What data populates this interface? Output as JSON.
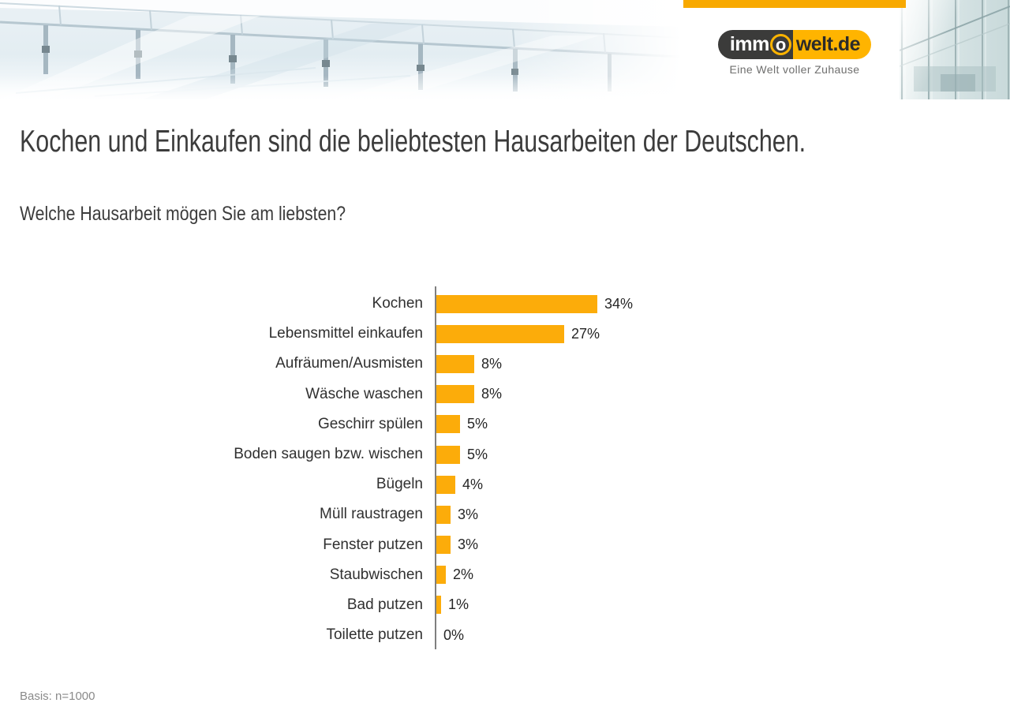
{
  "header": {
    "brand": {
      "logo_part_dark": "imm",
      "logo_part_ring": "o",
      "logo_part_yellow": "welt.de",
      "tagline": "Eine Welt voller Zuhause"
    },
    "accent_bar_color": "#F8A900",
    "logo_yellow": "#FFB400",
    "logo_dark": "#3B3B3A"
  },
  "slide": {
    "title": "Kochen und Einkaufen sind die beliebtesten Hausarbeiten der Deutschen.",
    "question": "Welche Hausarbeit mögen Sie am liebsten?"
  },
  "chart_data": {
    "type": "bar",
    "orientation": "horizontal",
    "title": "Welche Hausarbeit mögen Sie am liebsten?",
    "categories": [
      "Kochen",
      "Lebensmittel einkaufen",
      "Aufräumen/Ausmisten",
      "Wäsche waschen",
      "Geschirr spülen",
      "Boden saugen bzw. wischen",
      "Bügeln",
      "Müll raustragen",
      "Fenster putzen",
      "Staubwischen",
      "Bad putzen",
      "Toilette putzen"
    ],
    "values": [
      34,
      27,
      8,
      8,
      5,
      5,
      4,
      3,
      3,
      2,
      1,
      0
    ],
    "value_labels": [
      "34%",
      "27%",
      "8%",
      "8%",
      "5%",
      "5%",
      "4%",
      "3%",
      "3%",
      "2%",
      "1%",
      "0%"
    ],
    "unit": "%",
    "xlim": [
      0,
      38
    ],
    "grid": false,
    "legend": false,
    "bar_color": "#FCAC0A",
    "axis_color": "#7F7F7F"
  },
  "footer": {
    "basis": "Basis: n=1000"
  }
}
